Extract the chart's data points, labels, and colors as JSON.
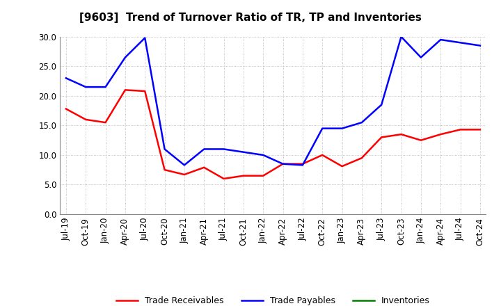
{
  "title": "[9603]  Trend of Turnover Ratio of TR, TP and Inventories",
  "xlabels": [
    "Jul-19",
    "Oct-19",
    "Jan-20",
    "Apr-20",
    "Jul-20",
    "Oct-20",
    "Jan-21",
    "Apr-21",
    "Jul-21",
    "Oct-21",
    "Jan-22",
    "Apr-22",
    "Jul-22",
    "Oct-22",
    "Jan-23",
    "Apr-23",
    "Jul-23",
    "Oct-23",
    "Jan-24",
    "Apr-24",
    "Jul-24",
    "Oct-24"
  ],
  "trade_receivables": [
    17.8,
    16.0,
    15.5,
    21.0,
    20.8,
    7.5,
    6.7,
    7.9,
    6.0,
    6.5,
    6.5,
    8.5,
    8.5,
    10.0,
    8.1,
    9.5,
    13.0,
    13.5,
    12.5,
    13.5,
    14.3,
    14.3
  ],
  "trade_payables": [
    23.0,
    21.5,
    21.5,
    26.5,
    29.8,
    11.0,
    8.3,
    11.0,
    11.0,
    10.5,
    10.0,
    8.5,
    8.3,
    14.5,
    14.5,
    15.5,
    18.5,
    30.0,
    26.5,
    29.5,
    29.0,
    28.5
  ],
  "inventories": [
    null,
    null,
    null,
    null,
    null,
    null,
    null,
    null,
    null,
    null,
    null,
    null,
    null,
    null,
    null,
    null,
    null,
    null,
    null,
    null,
    null,
    null
  ],
  "ylim": [
    0.0,
    30.0
  ],
  "yticks": [
    0.0,
    5.0,
    10.0,
    15.0,
    20.0,
    25.0,
    30.0
  ],
  "tr_color": "#ff0000",
  "tp_color": "#0000ff",
  "inv_color": "#008000",
  "background_color": "#ffffff",
  "grid_color": "#b0b0b0",
  "legend_labels": [
    "Trade Receivables",
    "Trade Payables",
    "Inventories"
  ],
  "title_fontsize": 11,
  "tick_fontsize": 8.5,
  "legend_fontsize": 9,
  "linewidth": 1.8
}
